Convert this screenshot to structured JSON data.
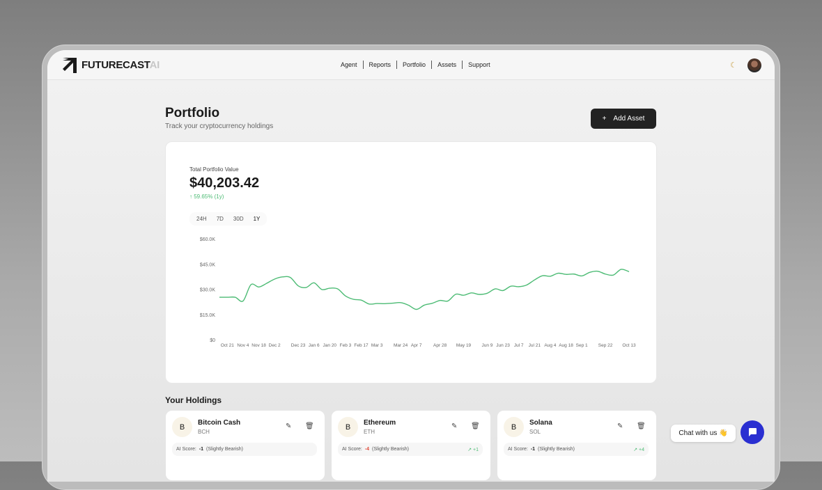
{
  "header": {
    "logo_main": "FUTURECAST",
    "logo_suffix": "AI",
    "nav": [
      "Agent",
      "Reports",
      "Portfolio",
      "Assets",
      "Support"
    ],
    "theme_icon": "moon-icon",
    "avatar": "user-avatar"
  },
  "page": {
    "title": "Portfolio",
    "subtitle": "Track your cryptocurrency holdings",
    "add_label": "Add Asset",
    "add_icon": "+"
  },
  "summary": {
    "label": "Total Portfolio Value",
    "value": "$40,203.42",
    "change": "↑ 59.65% (1y)",
    "change_color": "#4cbb74",
    "ranges": [
      "24H",
      "7D",
      "30D",
      "1Y"
    ],
    "active_range": "1Y"
  },
  "chart_data": {
    "type": "line",
    "line_color": "#4cbb74",
    "y_ticks": [
      "$0",
      "$15.0K",
      "$30.0K",
      "$45.0K",
      "$60.0K"
    ],
    "ylim": [
      0,
      60000
    ],
    "grid": false,
    "x_ticks": [
      "Oct 21",
      "Nov 4",
      "Nov 18",
      "Dec 2",
      "Dec 23",
      "Jan 6",
      "Jan 20",
      "Feb 3",
      "Feb 17",
      "Mar 3",
      "Mar 24",
      "Apr 7",
      "Apr 28",
      "May 19",
      "Jun 9",
      "Jun 23",
      "Jul 7",
      "Jul 21",
      "Aug 4",
      "Aug 18",
      "Sep 1",
      "Sep 22",
      "Oct 13"
    ],
    "x": [
      "Oct 14",
      "Oct 21",
      "Oct 28",
      "Nov 4",
      "Nov 11",
      "Nov 18",
      "Nov 25",
      "Dec 2",
      "Dec 9",
      "Dec 16",
      "Dec 23",
      "Dec 30",
      "Jan 6",
      "Jan 13",
      "Jan 20",
      "Jan 27",
      "Feb 3",
      "Feb 10",
      "Feb 17",
      "Feb 24",
      "Mar 3",
      "Mar 10",
      "Mar 17",
      "Mar 24",
      "Mar 31",
      "Apr 7",
      "Apr 14",
      "Apr 21",
      "Apr 28",
      "May 5",
      "May 12",
      "May 19",
      "May 26",
      "Jun 2",
      "Jun 9",
      "Jun 16",
      "Jun 23",
      "Jun 30",
      "Jul 7",
      "Jul 14",
      "Jul 21",
      "Jul 28",
      "Aug 4",
      "Aug 11",
      "Aug 18",
      "Aug 25",
      "Sep 1",
      "Sep 8",
      "Sep 15",
      "Sep 22",
      "Sep 29",
      "Oct 6",
      "Oct 13"
    ],
    "values": [
      25200,
      25200,
      25200,
      23000,
      32700,
      31300,
      33500,
      36000,
      37300,
      37000,
      32000,
      31000,
      33800,
      29800,
      30600,
      30200,
      26000,
      24000,
      23500,
      21200,
      21500,
      21400,
      21700,
      22000,
      20500,
      18000,
      20500,
      21600,
      23300,
      23000,
      27000,
      26400,
      27800,
      26900,
      27600,
      30200,
      29200,
      31800,
      31500,
      32500,
      35500,
      38000,
      37700,
      39500,
      38800,
      39000,
      37900,
      40000,
      40700,
      39000,
      38400,
      41800,
      40400
    ]
  },
  "holdings": {
    "title": "Your Holdings",
    "items": [
      {
        "icon": "B",
        "name": "Bitcoin Cash",
        "symbol": "BCH",
        "score_label": "AI Score:",
        "score": "-1",
        "sentiment": "(Slightly Bearish)",
        "trend": ""
      },
      {
        "icon": "B",
        "name": "Ethereum",
        "symbol": "ETH",
        "score_label": "AI Score:",
        "score": "-4",
        "sentiment": "(Slightly Bearish)",
        "trend": "↗ +1"
      },
      {
        "icon": "B",
        "name": "Solana",
        "symbol": "SOL",
        "score_label": "AI Score:",
        "score": "-1",
        "sentiment": "(Slightly Bearish)",
        "trend": "↗ +4"
      }
    ]
  },
  "chat": {
    "label": "Chat with us 👋",
    "accent": "#2a2fd1"
  }
}
